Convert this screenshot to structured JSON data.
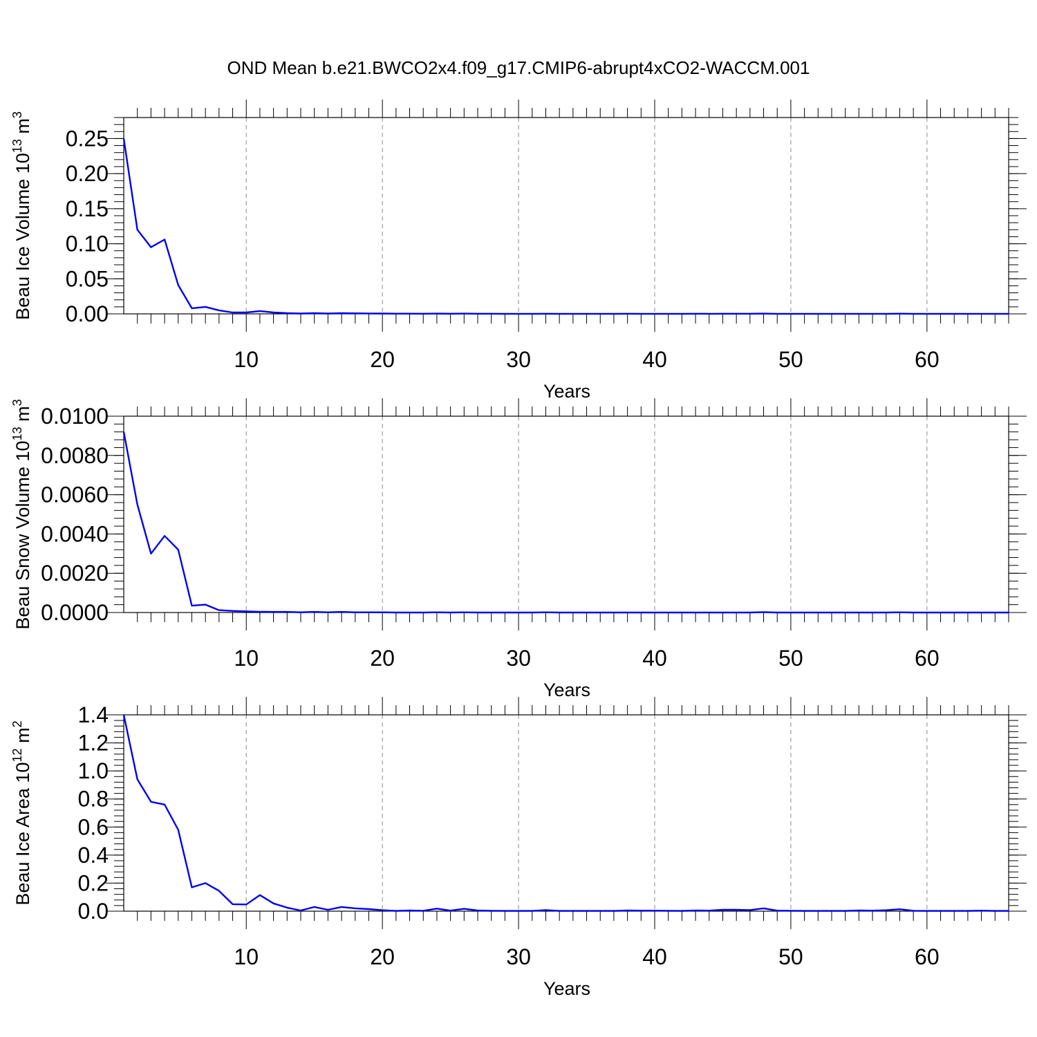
{
  "title": "OND Mean b.e21.BWCO2x4.f09_g17.CMIP6-abrupt4xCO2-WACCM.001",
  "chart_data": [
    {
      "type": "line",
      "title": "",
      "xlabel": "Years",
      "ylabel": {
        "text": "Beau Ice Volume 10",
        "exp": "13",
        "unit": " m",
        "unit_exp": "3"
      },
      "xlim": [
        1,
        66
      ],
      "ylim": [
        0,
        0.28
      ],
      "xticks": [
        10,
        20,
        30,
        40,
        50,
        60
      ],
      "yticks": [
        0.0,
        0.05,
        0.1,
        0.15,
        0.2,
        0.25
      ],
      "ytick_labels": [
        "0.00",
        "0.05",
        "0.10",
        "0.15",
        "0.20",
        "0.25"
      ],
      "grid": "vertical dashed",
      "series": [
        {
          "color": "#0000ee",
          "x": [
            1,
            2,
            3,
            4,
            5,
            6,
            7,
            8,
            9,
            10,
            11,
            12,
            13,
            14,
            15,
            16,
            17,
            18,
            19,
            20,
            21,
            22,
            23,
            24,
            25,
            26,
            27,
            28,
            29,
            30,
            31,
            32,
            33,
            34,
            35,
            36,
            37,
            38,
            39,
            40,
            41,
            42,
            43,
            44,
            45,
            46,
            47,
            48,
            49,
            50,
            51,
            52,
            53,
            54,
            55,
            56,
            57,
            58,
            59,
            60,
            61,
            62,
            63,
            64,
            65,
            66
          ],
          "values": [
            0.25,
            0.12,
            0.095,
            0.106,
            0.041,
            0.008,
            0.01,
            0.005,
            0.002,
            0.002,
            0.004,
            0.002,
            0.001,
            0.0005,
            0.001,
            0.0005,
            0.001,
            0.0008,
            0.0006,
            0.0005,
            0.0003,
            0.0003,
            0.0002,
            0.0004,
            0.0002,
            0.0004,
            0.0002,
            0.0002,
            0.0001,
            0.0001,
            0.0001,
            0.0002,
            0.0001,
            0.0001,
            0.0001,
            0.0001,
            0.0001,
            0.0002,
            0.0001,
            0.0001,
            0.0001,
            0.0001,
            0.0002,
            0.0001,
            0.0002,
            0.0002,
            0.0002,
            0.0004,
            0.0001,
            0.0001,
            0.0001,
            0.0001,
            0.0001,
            0.0001,
            0.0001,
            0.0001,
            0.0001,
            0.0003,
            0.0001,
            0.0001,
            0.0001,
            0.0001,
            0.0001,
            0.0001,
            0.0001,
            0.0001
          ]
        }
      ]
    },
    {
      "type": "line",
      "title": "",
      "xlabel": "Years",
      "ylabel": {
        "text": "Beau Snow Volume 10",
        "exp": "13",
        "unit": " m",
        "unit_exp": "3"
      },
      "xlim": [
        1,
        66
      ],
      "ylim": [
        0,
        0.01
      ],
      "xticks": [
        10,
        20,
        30,
        40,
        50,
        60
      ],
      "yticks": [
        0.0,
        0.002,
        0.004,
        0.006,
        0.008,
        0.01
      ],
      "ytick_labels": [
        "0.0000",
        "0.0020",
        "0.0040",
        "0.0060",
        "0.0080",
        "0.0100"
      ],
      "grid": "vertical dashed",
      "series": [
        {
          "color": "#0000ee",
          "x": [
            1,
            2,
            3,
            4,
            5,
            6,
            7,
            8,
            9,
            10,
            11,
            12,
            13,
            14,
            15,
            16,
            17,
            18,
            19,
            20,
            21,
            22,
            23,
            24,
            25,
            26,
            27,
            28,
            29,
            30,
            31,
            32,
            33,
            34,
            35,
            36,
            37,
            38,
            39,
            40,
            41,
            42,
            43,
            44,
            45,
            46,
            47,
            48,
            49,
            50,
            51,
            52,
            53,
            54,
            55,
            56,
            57,
            58,
            59,
            60,
            61,
            62,
            63,
            64,
            65,
            66
          ],
          "values": [
            0.0092,
            0.0055,
            0.003,
            0.0039,
            0.0032,
            0.00035,
            0.0004,
            0.00012,
            8e-05,
            6e-05,
            4e-05,
            3e-05,
            3e-05,
            1e-05,
            3e-05,
            1e-05,
            3e-05,
            1e-05,
            1e-05,
            1e-05,
            0.0,
            0.0,
            0.0,
            1e-05,
            0.0,
            1e-05,
            0.0,
            0.0,
            0.0,
            0.0,
            0.0,
            1e-05,
            0.0,
            0.0,
            0.0,
            0.0,
            0.0,
            0.0,
            0.0,
            0.0,
            0.0,
            0.0,
            0.0,
            0.0,
            0.0,
            0.0,
            0.0,
            2e-05,
            0.0,
            0.0,
            0.0,
            0.0,
            0.0,
            0.0,
            0.0,
            0.0,
            0.0,
            1e-05,
            0.0,
            0.0,
            0.0,
            0.0,
            0.0,
            0.0,
            0.0,
            0.0
          ]
        }
      ]
    },
    {
      "type": "line",
      "title": "",
      "xlabel": "Years",
      "ylabel": {
        "text": "Beau Ice Area 10",
        "exp": "12",
        "unit": " m",
        "unit_exp": "2"
      },
      "xlim": [
        1,
        66
      ],
      "ylim": [
        0,
        1.4
      ],
      "xticks": [
        10,
        20,
        30,
        40,
        50,
        60
      ],
      "yticks": [
        0.0,
        0.2,
        0.4,
        0.6,
        0.8,
        1.0,
        1.2,
        1.4
      ],
      "ytick_labels": [
        "0.0",
        "0.2",
        "0.4",
        "0.6",
        "0.8",
        "1.0",
        "1.2",
        "1.4"
      ],
      "grid": "vertical dashed",
      "series": [
        {
          "color": "#0000ee",
          "x": [
            1,
            2,
            3,
            4,
            5,
            6,
            7,
            8,
            9,
            10,
            11,
            12,
            13,
            14,
            15,
            16,
            17,
            18,
            19,
            20,
            21,
            22,
            23,
            24,
            25,
            26,
            27,
            28,
            29,
            30,
            31,
            32,
            33,
            34,
            35,
            36,
            37,
            38,
            39,
            40,
            41,
            42,
            43,
            44,
            45,
            46,
            47,
            48,
            49,
            50,
            51,
            52,
            53,
            54,
            55,
            56,
            57,
            58,
            59,
            60,
            61,
            62,
            63,
            64,
            65,
            66
          ],
          "values": [
            1.4,
            0.94,
            0.78,
            0.76,
            0.58,
            0.17,
            0.2,
            0.145,
            0.05,
            0.048,
            0.115,
            0.055,
            0.025,
            0.005,
            0.03,
            0.01,
            0.03,
            0.02,
            0.015,
            0.007,
            0.002,
            0.005,
            0.003,
            0.018,
            0.004,
            0.017,
            0.005,
            0.003,
            0.002,
            0.002,
            0.002,
            0.008,
            0.002,
            0.002,
            0.002,
            0.002,
            0.002,
            0.005,
            0.004,
            0.004,
            0.003,
            0.002,
            0.005,
            0.004,
            0.01,
            0.01,
            0.008,
            0.02,
            0.004,
            0.003,
            0.002,
            0.002,
            0.002,
            0.002,
            0.005,
            0.004,
            0.007,
            0.014,
            0.003,
            0.002,
            0.002,
            0.002,
            0.002,
            0.004,
            0.002,
            0.002
          ]
        }
      ]
    }
  ]
}
